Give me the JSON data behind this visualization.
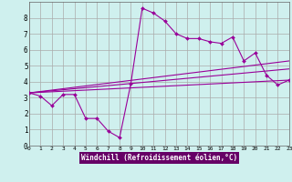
{
  "xlabel": "Windchill (Refroidissement éolien,°C)",
  "bg_color": "#cff0ee",
  "xlabel_bg": "#660066",
  "xlabel_fg": "#ffffff",
  "line_color": "#990099",
  "grid_color": "#aaaaaa",
  "spine_color": "#666666",
  "xlim": [
    0,
    23
  ],
  "ylim": [
    0,
    9
  ],
  "xticks": [
    0,
    1,
    2,
    3,
    4,
    5,
    6,
    7,
    8,
    9,
    10,
    11,
    12,
    13,
    14,
    15,
    16,
    17,
    18,
    19,
    20,
    21,
    22,
    23
  ],
  "yticks": [
    0,
    1,
    2,
    3,
    4,
    5,
    6,
    7,
    8
  ],
  "series1_x": [
    0,
    1,
    2,
    3,
    4,
    5,
    6,
    7,
    8,
    9,
    10,
    11,
    12,
    13,
    14,
    15,
    16,
    17,
    18,
    19,
    20,
    21,
    22,
    23
  ],
  "series1_y": [
    3.3,
    3.1,
    2.5,
    3.2,
    3.2,
    1.7,
    1.7,
    0.9,
    0.5,
    3.9,
    8.6,
    8.3,
    7.8,
    7.0,
    6.7,
    6.7,
    6.5,
    6.4,
    6.8,
    5.3,
    5.8,
    4.4,
    3.8,
    4.1
  ],
  "series2_x": [
    0,
    23
  ],
  "series2_y": [
    3.3,
    5.3
  ],
  "series3_x": [
    0,
    23
  ],
  "series3_y": [
    3.3,
    4.8
  ],
  "series4_x": [
    0,
    23
  ],
  "series4_y": [
    3.3,
    4.1
  ]
}
